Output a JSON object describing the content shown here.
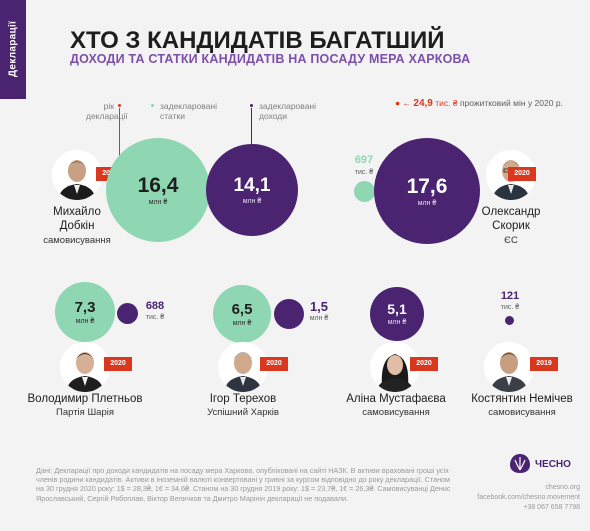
{
  "side_tab": "Декларації",
  "title": "ХТО З КАНДИДАТІВ БАГАТШИЙ",
  "subtitle": "ДОХОДИ ТА СТАТКИ КАНДИДАТІВ НА ПОСАДУ МЕРА ХАРКОВА",
  "legend": {
    "year": [
      "рік",
      "декларації"
    ],
    "assets": [
      "задекларовані",
      "статки"
    ],
    "income": [
      "задекларовані",
      "доходи"
    ]
  },
  "living_min": {
    "arrow": "←",
    "value": "24,9",
    "unit": "тис. ₴",
    "text": "прожитковий мін у 2020 р."
  },
  "chart_data": {
    "type": "bubble",
    "title": "ХТО З КАНДИДАТІВ БАГАТШИЙ",
    "subtitle": "ДОХОДИ ТА СТАТКИ КАНДИДАТІВ НА ПОСАДУ МЕРА ХАРКОВА",
    "series": [
      {
        "name": "задекларовані статки",
        "color": "#8fd6b3"
      },
      {
        "name": "задекларовані доходи",
        "color": "#4a2470"
      }
    ],
    "candidates": [
      {
        "id": "dobkin",
        "name": "Михайло Добкін",
        "name_lines": [
          "Михайло",
          "Добкін"
        ],
        "party": "самовисування",
        "year": "2019",
        "assets": {
          "value": 16.4,
          "label": "16,4",
          "unit": "млн ₴"
        },
        "income": {
          "value": 14.1,
          "label": "14,1",
          "unit": "млн ₴"
        }
      },
      {
        "id": "skoryk",
        "name": "Олександр Скорик",
        "name_lines": [
          "Олександр",
          "Скорик"
        ],
        "party": "ЄС",
        "year": "2020",
        "assets": {
          "value": 0.697,
          "label": "697",
          "unit": "тис. ₴"
        },
        "income": {
          "value": 17.6,
          "label": "17,6",
          "unit": "млн ₴"
        }
      },
      {
        "id": "pletnyov",
        "name": "Володимир Плетньов",
        "party": "Партія Шарія",
        "year": "2020",
        "assets": {
          "value": 7.3,
          "label": "7,3",
          "unit": "млн ₴"
        },
        "income": {
          "value": 0.688,
          "label": "688",
          "unit": "тис. ₴"
        }
      },
      {
        "id": "terekhov",
        "name": "Ігор Терехов",
        "party": "Успішний Харків",
        "year": "2020",
        "assets": {
          "value": 6.5,
          "label": "6,5",
          "unit": "млн ₴"
        },
        "income": {
          "value": 1.5,
          "label": "1,5",
          "unit": "млн ₴"
        }
      },
      {
        "id": "mustafaieva",
        "name": "Аліна Мустафаєва",
        "party": "самовисування",
        "year": "2020",
        "income": {
          "value": 5.1,
          "label": "5,1",
          "unit": "млн ₴"
        }
      },
      {
        "id": "nemichev",
        "name": "Костянтин Немічев",
        "party": "самовисування",
        "year": "2019",
        "income": {
          "value": 0.121,
          "label": "121",
          "unit": "тис. ₴"
        }
      }
    ]
  },
  "footnote": "Дані: Декларації про доходи кандидатів на посаду мера Харкова, опубліковані на сайті НАЗК. В активи враховані гроші усіх членів родини кандидатів. Активи в іноземній валюті конвертовані у гривні за курсом відповідно до року декларації. Станом на 30 грудня 2020 року: 1$ = 28,3₴, 1€ = 34,6₴. Станом на 30 грудня 2019 року: 1$ = 23,7₴, 1€ = 26,3₴. Самовисуванці Денис Ярославський, Сергій Рябоплав, Віктор Величков та Дмитро Марінін декларації не подавали.",
  "logo": "ЧЕСНО",
  "contacts": [
    "chesno.org",
    "facebook.com/chesno.movement",
    "+38 067 658 7798"
  ],
  "colors": {
    "teal": "#8fd6b3",
    "purple": "#4a2470",
    "accent": "#d9381e",
    "subtitle": "#7c4fa8"
  }
}
